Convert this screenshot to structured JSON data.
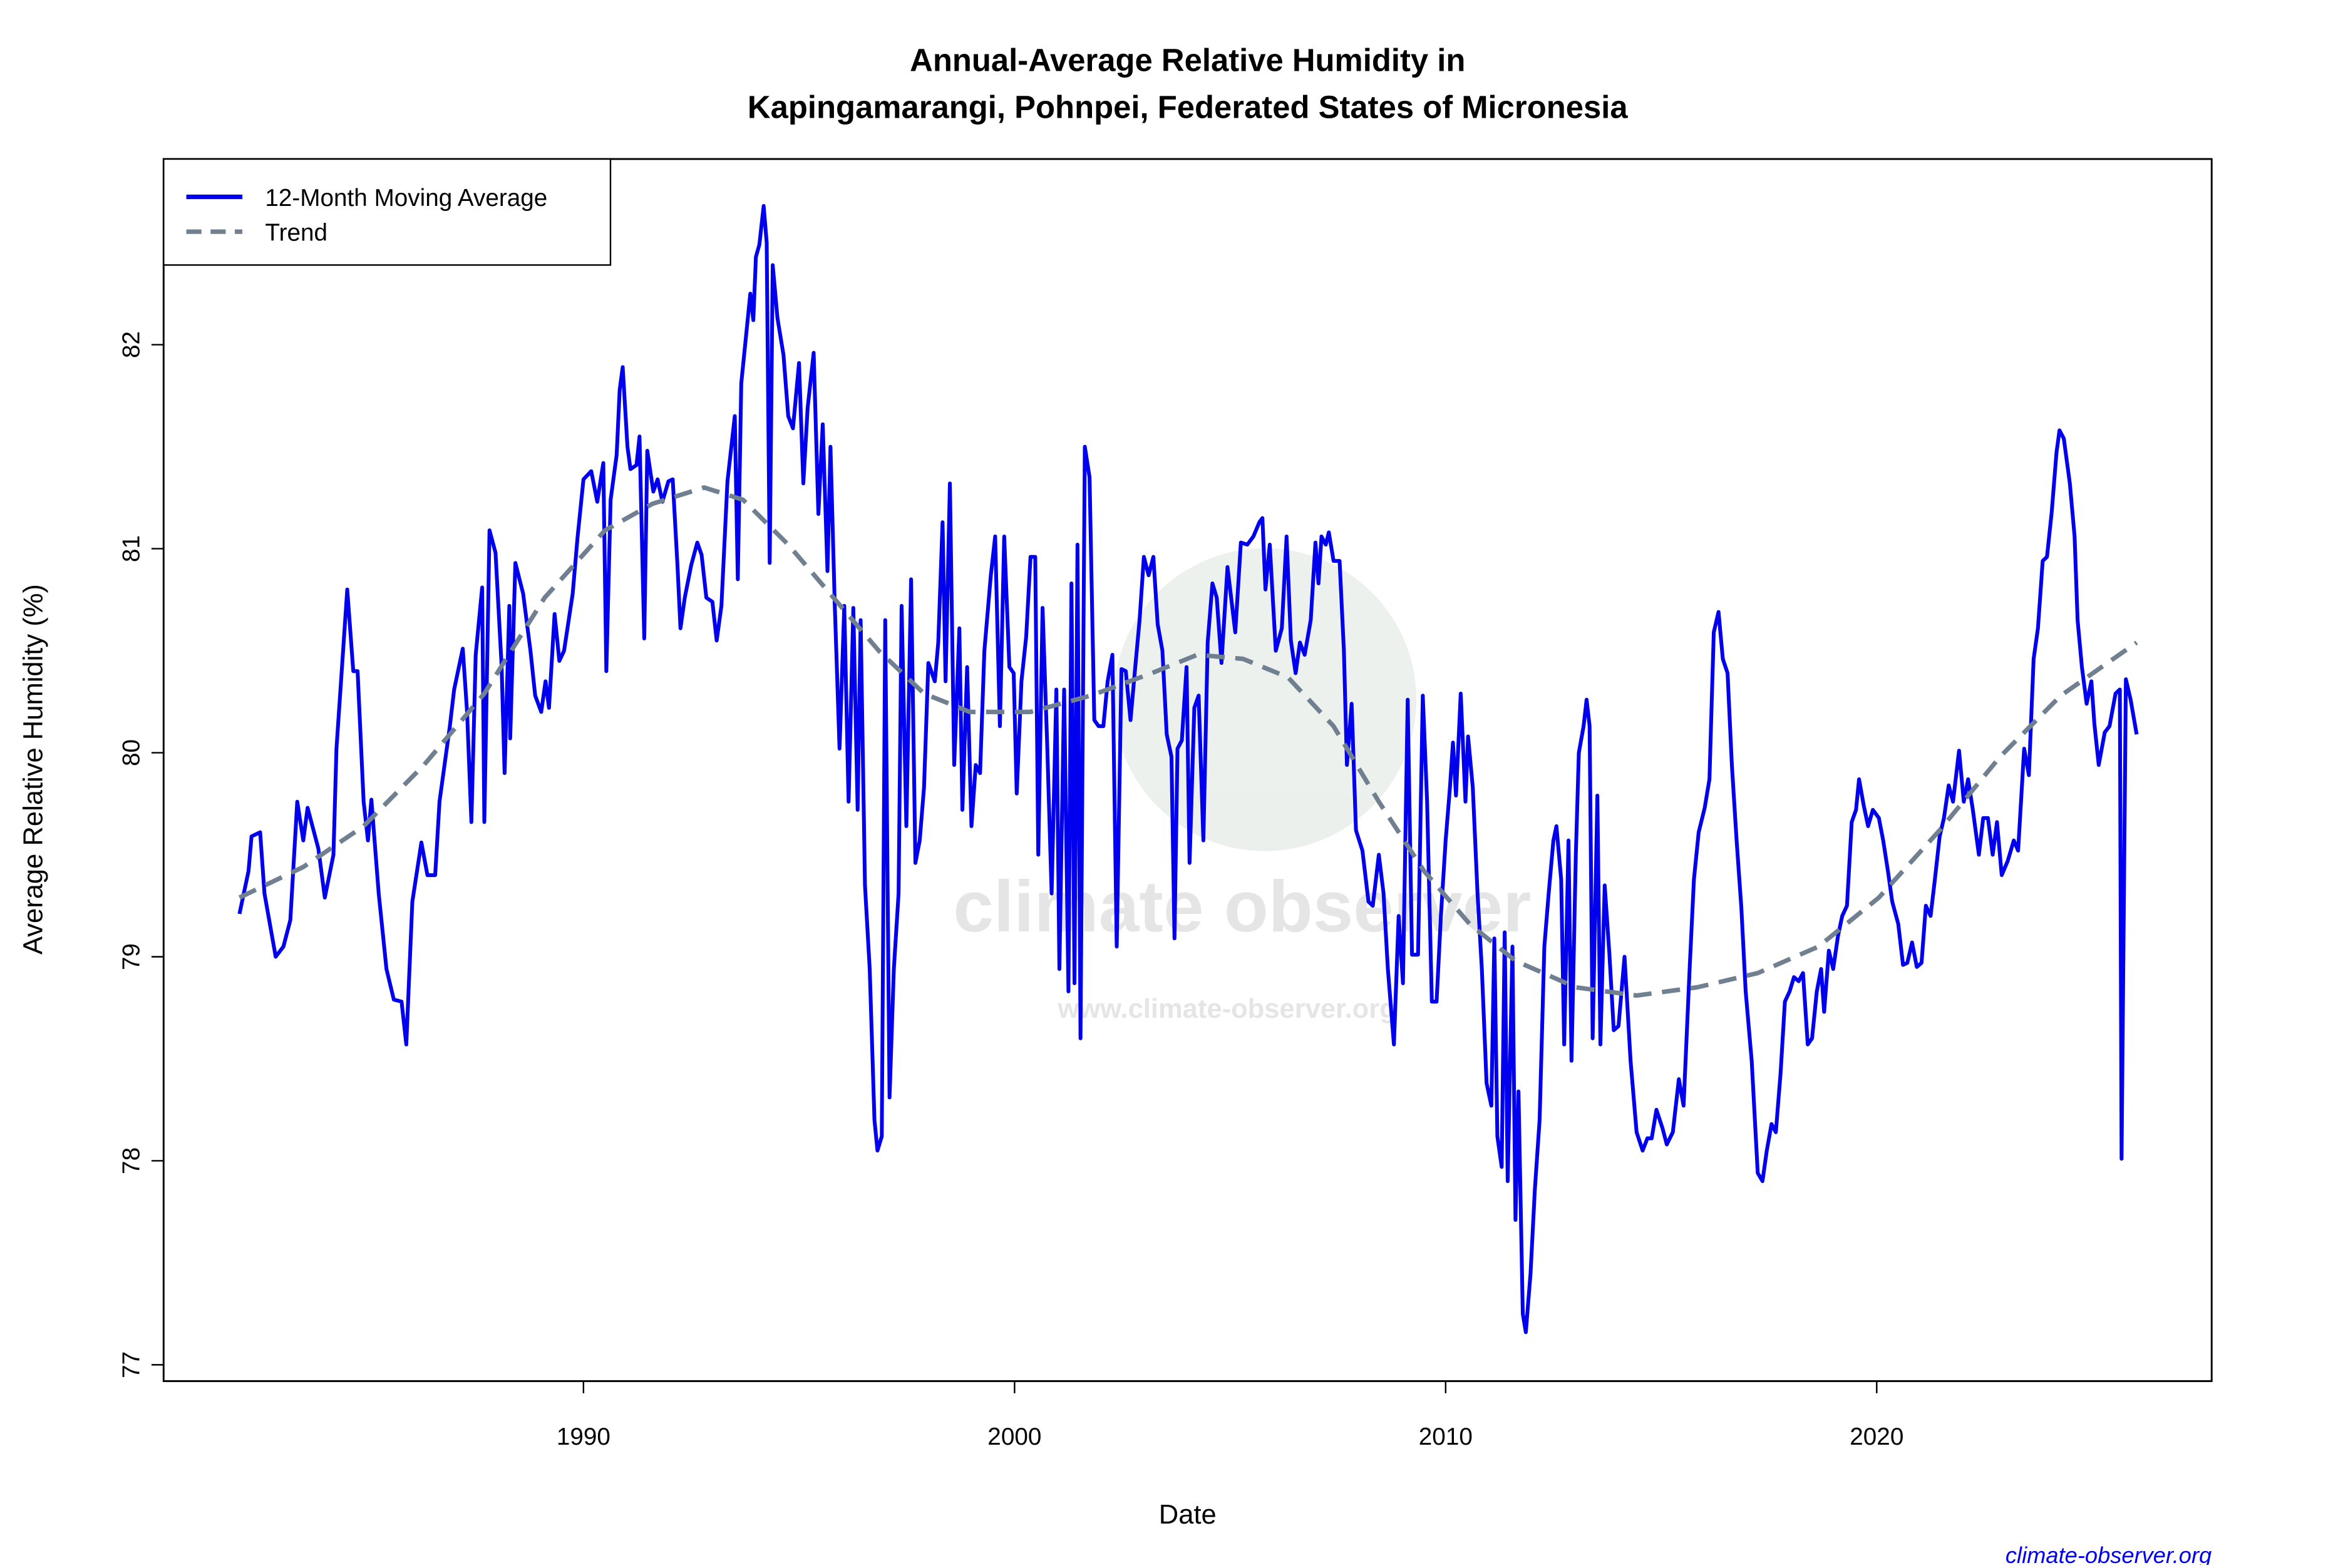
{
  "chart_data": {
    "type": "line",
    "title": [
      "Annual-Average Relative Humidity in",
      "Kapingamarangi, Pohnpei, Federated States of Micronesia"
    ],
    "x_label": "Date",
    "y_label": "Average Relative Humidity (%)",
    "credit": "climate-observer.org",
    "watermark": [
      "climate observer",
      "www.climate-observer.org"
    ],
    "legend_position": "top-left",
    "xlim": [
      1980.26,
      2027.77
    ],
    "ylim": [
      76.92,
      82.91
    ],
    "xticks": [
      1990,
      2000,
      2010,
      2020
    ],
    "yticks": [
      77,
      78,
      79,
      80,
      81,
      82
    ],
    "series": [
      {
        "name": "12-Month Moving Average",
        "color": "#0000ee",
        "style": "solid",
        "x": [
          1982.02,
          1982.23,
          1982.3,
          1982.5,
          1982.6,
          1982.86,
          1983.04,
          1983.2,
          1983.36,
          1983.5,
          1983.6,
          1983.85,
          1984.0,
          1984.2,
          1984.27,
          1984.52,
          1984.66,
          1984.76,
          1984.9,
          1985.0,
          1985.08,
          1985.25,
          1985.43,
          1985.6,
          1985.78,
          1985.89,
          1986.03,
          1986.24,
          1986.38,
          1986.56,
          1986.66,
          1986.9,
          1987.0,
          1987.2,
          1987.3,
          1987.4,
          1987.5,
          1987.65,
          1987.7,
          1987.82,
          1987.96,
          1988.1,
          1988.17,
          1988.28,
          1988.3,
          1988.42,
          1988.6,
          1988.77,
          1988.88,
          1989.02,
          1989.12,
          1989.2,
          1989.33,
          1989.44,
          1989.55,
          1989.75,
          1989.86,
          1990.0,
          1990.18,
          1990.32,
          1990.46,
          1990.53,
          1990.63,
          1990.77,
          1990.84,
          1990.91,
          1991.02,
          1991.09,
          1991.23,
          1991.3,
          1991.41,
          1991.48,
          1991.62,
          1991.72,
          1991.83,
          1991.97,
          1992.07,
          1992.18,
          1992.25,
          1992.35,
          1992.5,
          1992.64,
          1992.74,
          1992.85,
          1992.99,
          1993.09,
          1993.2,
          1993.34,
          1993.51,
          1993.58,
          1993.66,
          1993.87,
          1993.94,
          1994.0,
          1994.08,
          1994.18,
          1994.25,
          1994.32,
          1994.39,
          1994.5,
          1994.64,
          1994.75,
          1994.86,
          1995.0,
          1995.1,
          1995.2,
          1995.34,
          1995.45,
          1995.55,
          1995.66,
          1995.73,
          1995.83,
          1995.94,
          1996.05,
          1996.15,
          1996.26,
          1996.36,
          1996.43,
          1996.53,
          1996.64,
          1996.75,
          1996.82,
          1996.92,
          1997.0,
          1997.1,
          1997.2,
          1997.31,
          1997.38,
          1997.49,
          1997.6,
          1997.7,
          1997.8,
          1997.9,
          1998.0,
          1998.15,
          1998.23,
          1998.33,
          1998.4,
          1998.5,
          1998.6,
          1998.72,
          1998.79,
          1998.9,
          1999.0,
          1999.1,
          1999.2,
          1999.3,
          1999.45,
          1999.55,
          1999.66,
          1999.76,
          1999.88,
          1999.98,
          2000.05,
          2000.16,
          2000.27,
          2000.37,
          2000.48,
          2000.55,
          2000.65,
          2000.76,
          2000.86,
          2000.97,
          2001.04,
          2001.15,
          2001.25,
          2001.32,
          2001.39,
          2001.46,
          2001.53,
          2001.63,
          2001.74,
          2001.85,
          2001.95,
          2002.06,
          2002.16,
          2002.27,
          2002.37,
          2002.48,
          2002.58,
          2002.69,
          2002.8,
          2002.9,
          2003.0,
          2003.11,
          2003.22,
          2003.32,
          2003.43,
          2003.53,
          2003.64,
          2003.71,
          2003.78,
          2003.88,
          2003.99,
          2004.06,
          2004.17,
          2004.27,
          2004.38,
          2004.48,
          2004.59,
          2004.69,
          2004.8,
          2004.94,
          2005.12,
          2005.25,
          2005.4,
          2005.54,
          2005.68,
          2005.75,
          2005.82,
          2005.92,
          2006.06,
          2006.2,
          2006.31,
          2006.41,
          2006.52,
          2006.62,
          2006.73,
          2006.87,
          2006.98,
          2007.05,
          2007.12,
          2007.22,
          2007.29,
          2007.4,
          2007.54,
          2007.64,
          2007.71,
          2007.82,
          2007.92,
          2008.07,
          2008.21,
          2008.31,
          2008.45,
          2008.56,
          2008.66,
          2008.8,
          2008.91,
          2009.01,
          2009.12,
          2009.22,
          2009.36,
          2009.47,
          2009.57,
          2009.68,
          2009.79,
          2009.89,
          2010.0,
          2010.1,
          2010.17,
          2010.24,
          2010.35,
          2010.46,
          2010.52,
          2010.63,
          2010.74,
          2010.84,
          2010.95,
          2011.06,
          2011.13,
          2011.2,
          2011.3,
          2011.37,
          2011.44,
          2011.55,
          2011.62,
          2011.69,
          2011.79,
          2011.86,
          2011.97,
          2012.07,
          2012.18,
          2012.29,
          2012.39,
          2012.5,
          2012.57,
          2012.68,
          2012.75,
          2012.85,
          2012.92,
          2013.02,
          2013.09,
          2013.2,
          2013.27,
          2013.34,
          2013.41,
          2013.52,
          2013.59,
          2013.69,
          2013.8,
          2013.9,
          2014.01,
          2014.15,
          2014.29,
          2014.43,
          2014.57,
          2014.68,
          2014.78,
          2014.89,
          2015.03,
          2015.13,
          2015.27,
          2015.41,
          2015.52,
          2015.66,
          2015.76,
          2015.87,
          2016.01,
          2016.12,
          2016.22,
          2016.33,
          2016.43,
          2016.54,
          2016.64,
          2016.75,
          2016.86,
          2016.96,
          2017.1,
          2017.24,
          2017.35,
          2017.45,
          2017.56,
          2017.66,
          2017.77,
          2017.87,
          2017.98,
          2018.08,
          2018.19,
          2018.29,
          2018.4,
          2018.5,
          2018.61,
          2018.71,
          2018.78,
          2018.89,
          2018.99,
          2019.1,
          2019.2,
          2019.31,
          2019.42,
          2019.52,
          2019.59,
          2019.7,
          2019.8,
          2019.91,
          2020.05,
          2020.15,
          2020.26,
          2020.36,
          2020.5,
          2020.61,
          2020.71,
          2020.82,
          2020.93,
          2021.04,
          2021.14,
          2021.25,
          2021.35,
          2021.46,
          2021.56,
          2021.67,
          2021.77,
          2021.91,
          2022.02,
          2022.12,
          2022.23,
          2022.37,
          2022.47,
          2022.58,
          2022.69,
          2022.79,
          2022.9,
          2023.04,
          2023.18,
          2023.28,
          2023.42,
          2023.53,
          2023.64,
          2023.74,
          2023.85,
          2023.95,
          2024.06,
          2024.17,
          2024.24,
          2024.34,
          2024.48,
          2024.59,
          2024.66,
          2024.76,
          2024.87,
          2024.98,
          2025.05,
          2025.15,
          2025.29,
          2025.4,
          2025.54,
          2025.64,
          2025.68,
          2025.78,
          2025.89,
          2026.03
        ],
        "values": [
          79.21,
          79.42,
          79.59,
          79.61,
          79.31,
          79.0,
          79.05,
          79.18,
          79.76,
          79.57,
          79.73,
          79.53,
          79.29,
          79.5,
          80.02,
          80.8,
          80.4,
          80.4,
          79.76,
          79.57,
          79.77,
          79.31,
          78.94,
          78.79,
          78.78,
          78.57,
          79.27,
          79.56,
          79.4,
          79.4,
          79.76,
          80.13,
          80.31,
          80.51,
          80.2,
          79.66,
          80.48,
          80.81,
          79.66,
          81.09,
          80.98,
          80.43,
          79.9,
          80.72,
          80.07,
          80.93,
          80.78,
          80.5,
          80.28,
          80.2,
          80.35,
          80.22,
          80.68,
          80.45,
          80.5,
          80.78,
          81.05,
          81.34,
          81.38,
          81.23,
          81.42,
          80.4,
          81.24,
          81.46,
          81.78,
          81.89,
          81.5,
          81.39,
          81.41,
          81.55,
          80.56,
          81.48,
          81.28,
          81.34,
          81.23,
          81.33,
          81.34,
          80.92,
          80.61,
          80.76,
          80.92,
          81.03,
          80.97,
          80.76,
          80.74,
          80.55,
          80.72,
          81.33,
          81.65,
          80.85,
          81.81,
          82.25,
          82.12,
          82.43,
          82.49,
          82.68,
          82.5,
          80.93,
          82.39,
          82.13,
          81.95,
          81.65,
          81.59,
          81.91,
          81.32,
          81.69,
          81.96,
          81.17,
          81.61,
          80.89,
          81.5,
          80.72,
          80.02,
          80.72,
          79.76,
          80.71,
          79.72,
          80.65,
          79.35,
          78.94,
          78.2,
          78.05,
          78.12,
          80.65,
          78.31,
          78.94,
          79.31,
          80.72,
          79.64,
          80.85,
          79.46,
          79.57,
          79.83,
          80.44,
          80.35,
          80.54,
          81.13,
          80.35,
          81.32,
          79.94,
          80.61,
          79.72,
          80.42,
          79.64,
          79.94,
          79.9,
          80.5,
          80.87,
          81.06,
          80.13,
          81.06,
          80.42,
          80.39,
          79.8,
          80.35,
          80.57,
          80.96,
          80.96,
          79.5,
          80.71,
          80.02,
          79.31,
          80.31,
          78.94,
          80.31,
          78.83,
          80.83,
          78.87,
          81.02,
          78.6,
          81.5,
          81.35,
          80.16,
          80.13,
          80.13,
          80.35,
          80.48,
          79.05,
          80.41,
          80.4,
          80.16,
          80.42,
          80.65,
          80.96,
          80.87,
          80.96,
          80.63,
          80.5,
          80.09,
          79.98,
          79.09,
          80.02,
          80.06,
          80.42,
          79.46,
          80.22,
          80.28,
          79.57,
          80.54,
          80.83,
          80.76,
          80.44,
          80.91,
          80.59,
          81.03,
          81.02,
          81.06,
          81.13,
          81.15,
          80.8,
          81.02,
          80.5,
          80.61,
          81.06,
          80.55,
          80.39,
          80.54,
          80.48,
          80.65,
          81.03,
          80.83,
          81.06,
          81.02,
          81.08,
          80.94,
          80.94,
          80.5,
          79.94,
          80.24,
          79.62,
          79.52,
          79.27,
          79.25,
          79.5,
          79.31,
          78.94,
          78.57,
          79.2,
          78.87,
          80.26,
          79.01,
          79.01,
          80.28,
          79.76,
          78.78,
          78.78,
          79.2,
          79.57,
          79.83,
          80.05,
          79.79,
          80.29,
          79.76,
          80.08,
          79.83,
          79.31,
          78.94,
          78.38,
          78.27,
          79.09,
          78.12,
          77.97,
          79.12,
          77.9,
          79.05,
          77.71,
          78.34,
          77.25,
          77.16,
          77.45,
          77.86,
          78.2,
          79.05,
          79.31,
          79.57,
          79.64,
          79.38,
          78.57,
          79.57,
          78.49,
          79.5,
          80.0,
          80.13,
          80.26,
          80.13,
          78.6,
          79.79,
          78.57,
          79.35,
          79.01,
          78.64,
          78.66,
          79.0,
          78.49,
          78.14,
          78.05,
          78.11,
          78.11,
          78.25,
          78.16,
          78.08,
          78.14,
          78.4,
          78.27,
          78.94,
          79.38,
          79.61,
          79.73,
          79.87,
          80.59,
          80.69,
          80.46,
          80.39,
          79.94,
          79.57,
          79.24,
          78.83,
          78.49,
          77.94,
          77.9,
          78.05,
          78.18,
          78.14,
          78.43,
          78.78,
          78.83,
          78.9,
          78.88,
          78.92,
          78.57,
          78.6,
          78.83,
          78.94,
          78.73,
          79.03,
          78.94,
          79.1,
          79.2,
          79.25,
          79.66,
          79.72,
          79.87,
          79.74,
          79.64,
          79.72,
          79.68,
          79.57,
          79.42,
          79.27,
          79.16,
          78.96,
          78.97,
          79.07,
          78.95,
          78.97,
          79.25,
          79.2,
          79.38,
          79.59,
          79.68,
          79.84,
          79.76,
          80.01,
          79.76,
          79.87,
          79.72,
          79.5,
          79.68,
          79.68,
          79.5,
          79.66,
          79.4,
          79.47,
          79.57,
          79.52,
          80.02,
          79.89,
          80.46,
          80.61,
          80.94,
          80.96,
          81.18,
          81.47,
          81.58,
          81.54,
          81.32,
          81.06,
          80.65,
          80.42,
          80.24,
          80.35,
          80.14,
          79.94,
          80.1,
          80.13,
          80.29,
          80.31,
          78.01,
          80.36,
          80.26,
          80.09
        ]
      },
      {
        "name": "Trend",
        "color": "#708090",
        "style": "dashed",
        "x": [
          1982.02,
          1983.5,
          1984.9,
          1986.3,
          1987.7,
          1989.1,
          1990.5,
          1991.6,
          1992.8,
          1993.7,
          1994.75,
          1995.8,
          1996.85,
          1997.9,
          1998.96,
          2000.37,
          2001.77,
          2003.18,
          2004.24,
          2005.3,
          2006.34,
          2007.4,
          2008.45,
          2009.5,
          2010.56,
          2011.62,
          2013.02,
          2014.43,
          2015.83,
          2017.24,
          2018.65,
          2020.05,
          2021.46,
          2022.86,
          2024.27,
          2026.03
        ],
        "values": [
          79.29,
          79.44,
          79.64,
          79.94,
          80.29,
          80.76,
          81.09,
          81.22,
          81.3,
          81.24,
          81.02,
          80.76,
          80.5,
          80.29,
          80.2,
          80.2,
          80.28,
          80.39,
          80.48,
          80.46,
          80.37,
          80.13,
          79.76,
          79.42,
          79.16,
          78.98,
          78.85,
          78.81,
          78.85,
          78.92,
          79.05,
          79.29,
          79.62,
          79.98,
          80.28,
          80.54
        ]
      }
    ]
  }
}
